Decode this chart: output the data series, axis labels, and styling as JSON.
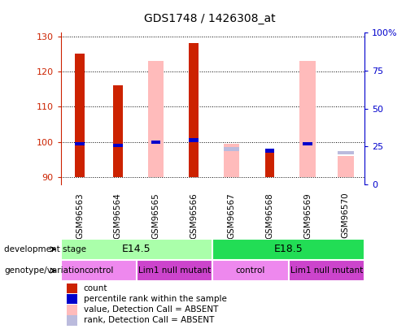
{
  "title": "GDS1748 / 1426308_at",
  "samples": [
    "GSM96563",
    "GSM96564",
    "GSM96565",
    "GSM96566",
    "GSM96567",
    "GSM96568",
    "GSM96569",
    "GSM96570"
  ],
  "ylim_left": [
    88,
    131
  ],
  "ylim_right": [
    0,
    100
  ],
  "yticks_left": [
    90,
    100,
    110,
    120,
    130
  ],
  "yticks_right": [
    0,
    25,
    50,
    75,
    100
  ],
  "yticklabels_right": [
    "0",
    "25",
    "50",
    "75",
    "100%"
  ],
  "red_bars": [
    125,
    116,
    null,
    128,
    null,
    97,
    null,
    null
  ],
  "pink_bars": [
    null,
    null,
    123,
    null,
    99.5,
    null,
    123,
    96
  ],
  "blue_bars": [
    99.5,
    99,
    100,
    100.5,
    null,
    97.5,
    99.5,
    null
  ],
  "light_blue_bars": [
    null,
    null,
    null,
    null,
    98,
    null,
    null,
    97
  ],
  "bar_base": 90,
  "development_stage_groups": [
    {
      "label": "E14.5",
      "start": 0,
      "end": 3,
      "color": "#aaffaa"
    },
    {
      "label": "E18.5",
      "start": 4,
      "end": 7,
      "color": "#22dd55"
    }
  ],
  "genotype_groups": [
    {
      "label": "control",
      "start": 0,
      "end": 1,
      "color": "#ee88ee"
    },
    {
      "label": "Lim1 null mutant",
      "start": 2,
      "end": 3,
      "color": "#cc44cc"
    },
    {
      "label": "control",
      "start": 4,
      "end": 5,
      "color": "#ee88ee"
    },
    {
      "label": "Lim1 null mutant",
      "start": 6,
      "end": 7,
      "color": "#cc44cc"
    }
  ],
  "legend_items": [
    {
      "label": "count",
      "color": "#cc2200"
    },
    {
      "label": "percentile rank within the sample",
      "color": "#0000cc"
    },
    {
      "label": "value, Detection Call = ABSENT",
      "color": "#ffbbbb"
    },
    {
      "label": "rank, Detection Call = ABSENT",
      "color": "#bbbbdd"
    }
  ],
  "red_color": "#cc2200",
  "pink_color": "#ffbbbb",
  "blue_color": "#0000cc",
  "light_blue_color": "#bbbbdd",
  "left_axis_color": "#cc2200",
  "right_axis_color": "#0000cc",
  "sample_bg_color": "#cccccc",
  "bg_color": "#ffffff"
}
